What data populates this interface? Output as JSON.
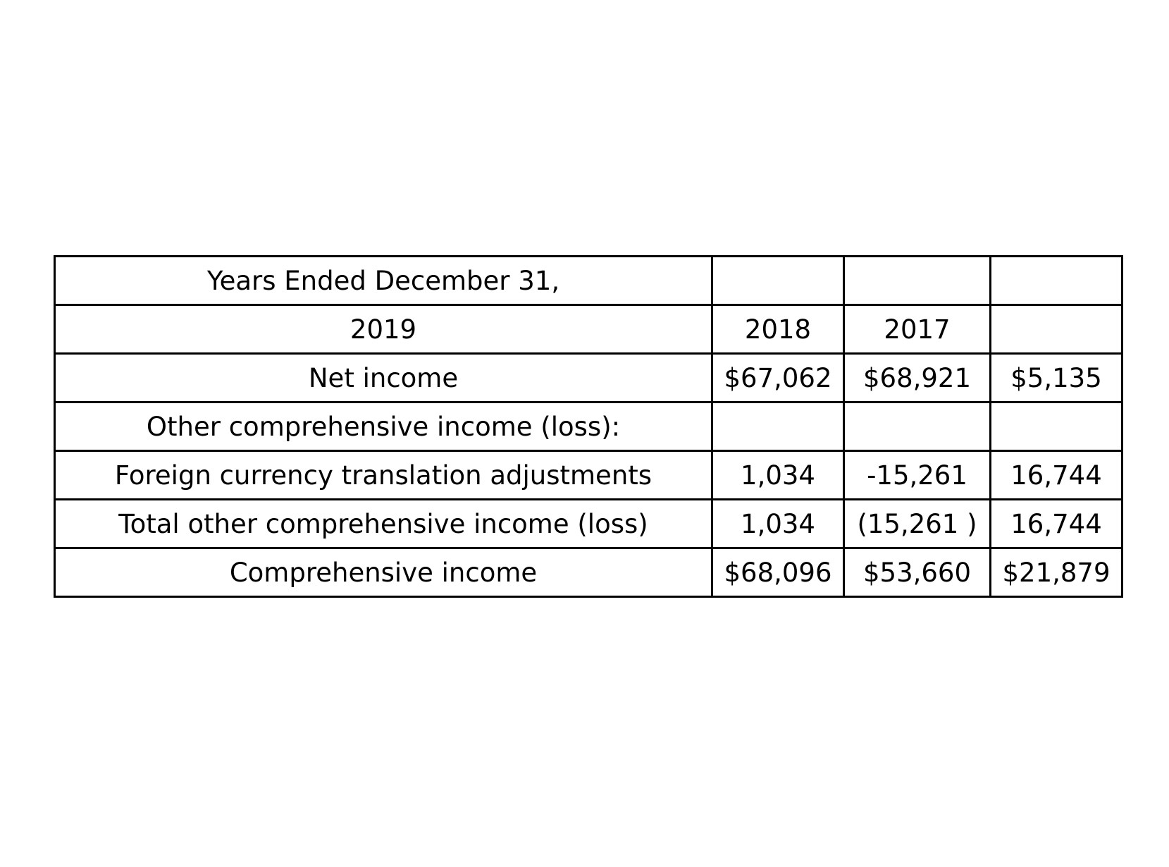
{
  "table": {
    "rows": [
      [
        "Years Ended December 31,",
        "",
        "",
        ""
      ],
      [
        "2019",
        "2018",
        "2017",
        ""
      ],
      [
        "Net income",
        "$67,062",
        "$68,921",
        "$5,135"
      ],
      [
        "Other comprehensive income (loss):",
        "",
        "",
        ""
      ],
      [
        "Foreign currency translation adjustments",
        "1,034",
        "-15,261",
        "16,744"
      ],
      [
        "Total other comprehensive income (loss)",
        "1,034",
        "(15,261 )",
        "16,744"
      ],
      [
        "Comprehensive income",
        "$68,096",
        "$53,660",
        "$21,879"
      ]
    ]
  }
}
